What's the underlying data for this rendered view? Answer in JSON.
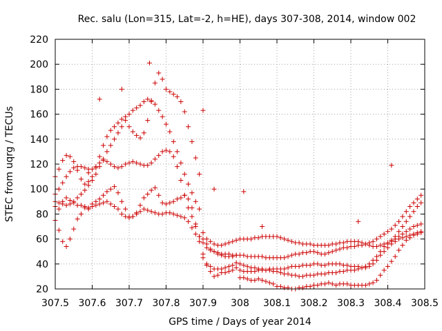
{
  "chart_data": {
    "type": "scatter",
    "title": "Rec. salu (Lon=315, Lat=-2, h=HE), days 307-308, 2014, window 002",
    "xlabel": "GPS time / Days of year 2014",
    "ylabel": "STEC from uqrg / TECUs",
    "xlim": [
      307.5,
      308.5
    ],
    "ylim": [
      20,
      220
    ],
    "xticks": [
      307.5,
      307.6,
      307.7,
      307.8,
      307.9,
      308.0,
      308.1,
      308.2,
      308.3,
      308.4,
      308.5
    ],
    "xtick_labels": [
      "307.5",
      "307.6",
      "307.7",
      "307.8",
      "307.9",
      "308",
      "308.1",
      "308.2",
      "308.3",
      "308.4",
      "308.5"
    ],
    "yticks": [
      20,
      40,
      60,
      80,
      100,
      120,
      140,
      160,
      180,
      200,
      220
    ],
    "ytick_labels": [
      "20",
      "40",
      "60",
      "80",
      "100",
      "120",
      "140",
      "160",
      "180",
      "200",
      "220"
    ],
    "grid": true,
    "marker": "plus",
    "color": "#cc0000",
    "series": [
      {
        "x": [
          307.5,
          307.51,
          307.52,
          307.53,
          307.54,
          307.55,
          307.56,
          307.57,
          307.58,
          307.59,
          307.6,
          307.61,
          307.62,
          307.63,
          307.64,
          307.65,
          307.66,
          307.67,
          307.68,
          307.69,
          307.7,
          307.71,
          307.72,
          307.73,
          307.74,
          307.75,
          307.76,
          307.77,
          307.78,
          307.79,
          307.8,
          307.81,
          307.82,
          307.83,
          307.84,
          307.85,
          307.86,
          307.87,
          307.88,
          307.89,
          307.9,
          307.91,
          307.92,
          307.93,
          307.94,
          307.95,
          307.96,
          307.97,
          307.98,
          307.99,
          308.0,
          308.01,
          308.02,
          308.03,
          308.04,
          308.05,
          308.06,
          308.07,
          308.08,
          308.09,
          308.1,
          308.11,
          308.12,
          308.13,
          308.14,
          308.15,
          308.16,
          308.17,
          308.18,
          308.19,
          308.2,
          308.21,
          308.22,
          308.23,
          308.24,
          308.25,
          308.26,
          308.27,
          308.28,
          308.29,
          308.3,
          308.31,
          308.32,
          308.33,
          308.34,
          308.35,
          308.36,
          308.37,
          308.38,
          308.39,
          308.4,
          308.41,
          308.42,
          308.43,
          308.44,
          308.45,
          308.46,
          308.47,
          308.48,
          308.49
        ],
        "y": [
          75,
          67,
          58,
          54,
          60,
          68,
          76,
          80,
          85,
          84,
          88,
          90,
          92,
          95,
          98,
          100,
          102,
          97,
          90,
          84,
          78,
          78,
          81,
          87,
          93,
          96,
          99,
          101,
          95,
          89,
          88,
          89,
          90,
          92,
          93,
          95,
          92,
          85,
          72,
          62,
          45,
          39,
          34,
          30,
          31,
          33,
          33,
          34,
          35,
          37,
          29,
          29,
          28,
          27,
          27,
          28,
          27,
          26,
          25,
          24,
          22,
          22,
          21,
          21,
          20,
          20,
          21,
          21,
          22,
          22,
          23,
          23,
          24,
          24,
          25,
          24,
          23,
          24,
          24,
          24,
          23,
          23,
          23,
          23,
          23,
          24,
          25,
          27,
          31,
          35,
          38,
          42,
          46,
          51,
          55,
          59,
          61,
          63,
          64,
          65
        ]
      },
      {
        "x": [
          307.5,
          307.51,
          307.52,
          307.53,
          307.54,
          307.55,
          307.56,
          307.57,
          307.58,
          307.59,
          307.6,
          307.61,
          307.62,
          307.63,
          307.64,
          307.65,
          307.66,
          307.67,
          307.68,
          307.69,
          307.7,
          307.71,
          307.72,
          307.73,
          307.74,
          307.75,
          307.76,
          307.77,
          307.78,
          307.79,
          307.8,
          307.81,
          307.82,
          307.83,
          307.84,
          307.85,
          307.86,
          307.87,
          307.88,
          307.89,
          307.9,
          307.91,
          307.92,
          307.93,
          307.94,
          307.95,
          307.96,
          307.97,
          307.98,
          307.99,
          308.0,
          308.01,
          308.02,
          308.03,
          308.04,
          308.05,
          308.06,
          308.07,
          308.08,
          308.09,
          308.1,
          308.11,
          308.12,
          308.13,
          308.14,
          308.15,
          308.16,
          308.17,
          308.18,
          308.19,
          308.2,
          308.21,
          308.22,
          308.23,
          308.24,
          308.25,
          308.26,
          308.27,
          308.28,
          308.29,
          308.3,
          308.31,
          308.32,
          308.33,
          308.34,
          308.35,
          308.36,
          308.37,
          308.38,
          308.39,
          308.4,
          308.41,
          308.42,
          308.43,
          308.44,
          308.45,
          308.46,
          308.47,
          308.48,
          308.49
        ],
        "y": [
          86,
          84,
          90,
          93,
          91,
          89,
          87,
          87,
          86,
          85,
          86,
          87,
          88,
          89,
          90,
          88,
          86,
          84,
          80,
          78,
          77,
          78,
          80,
          82,
          84,
          83,
          82,
          81,
          80,
          80,
          81,
          81,
          80,
          79,
          78,
          77,
          74,
          69,
          64,
          58,
          48,
          40,
          38,
          36,
          36,
          36,
          37,
          38,
          39,
          41,
          35,
          34,
          34,
          34,
          34,
          35,
          35,
          35,
          36,
          36,
          36,
          36,
          36,
          37,
          38,
          38,
          38,
          39,
          39,
          39,
          40,
          40,
          39,
          39,
          40,
          40,
          40,
          40,
          39,
          39,
          38,
          38,
          38,
          37,
          37,
          38,
          40,
          43,
          47,
          50,
          53,
          56,
          58,
          60,
          61,
          62,
          63,
          64,
          65,
          66
        ]
      },
      {
        "x": [
          307.5,
          307.51,
          307.52,
          307.53,
          307.54,
          307.55,
          307.56,
          307.57,
          307.58,
          307.59,
          307.6,
          307.61,
          307.62,
          307.63,
          307.64,
          307.65,
          307.66,
          307.67,
          307.68,
          307.69,
          307.7,
          307.71,
          307.72,
          307.73,
          307.74,
          307.75,
          307.76,
          307.77,
          307.78,
          307.79,
          307.8,
          307.81,
          307.82,
          307.83,
          307.84,
          307.85,
          307.86,
          307.87,
          307.88,
          307.89,
          307.9,
          307.91,
          307.92,
          307.93,
          307.94,
          307.95,
          307.96,
          307.97,
          307.98,
          307.99,
          308.0,
          308.01,
          308.02,
          308.03,
          308.04,
          308.05,
          308.06,
          308.07,
          308.08,
          308.09,
          308.1,
          308.11,
          308.12,
          308.13,
          308.14,
          308.15,
          308.16,
          308.17,
          308.18,
          308.19,
          308.2,
          308.21,
          308.22,
          308.23,
          308.24,
          308.25,
          308.26,
          308.27,
          308.28,
          308.29,
          308.3,
          308.31,
          308.32,
          308.33,
          308.34,
          308.35,
          308.36,
          308.37,
          308.38,
          308.39,
          308.4,
          308.41,
          308.42,
          308.43,
          308.44,
          308.45,
          308.46,
          308.47,
          308.48,
          308.49
        ],
        "y": [
          96,
          100,
          105,
          110,
          114,
          117,
          118,
          118,
          117,
          116,
          116,
          118,
          121,
          123,
          122,
          120,
          118,
          117,
          118,
          120,
          121,
          122,
          121,
          120,
          119,
          119,
          121,
          124,
          127,
          130,
          131,
          130,
          126,
          118,
          107,
          95,
          85,
          78,
          70,
          62,
          57,
          53,
          51,
          50,
          49,
          48,
          48,
          48,
          47,
          47,
          47,
          47,
          46,
          46,
          46,
          46,
          46,
          45,
          45,
          45,
          45,
          45,
          45,
          46,
          47,
          48,
          48,
          49,
          49,
          50,
          50,
          49,
          48,
          48,
          49,
          50,
          51,
          52,
          53,
          53,
          54,
          54,
          55,
          55,
          56,
          57,
          58,
          60,
          62,
          64,
          66,
          68,
          71,
          74,
          78,
          82,
          86,
          89,
          92,
          95
        ]
      },
      {
        "x": [
          307.5,
          307.51,
          307.52,
          307.53,
          307.54,
          307.55,
          307.56,
          307.57,
          307.58,
          307.59,
          307.6,
          307.61,
          307.62,
          307.63,
          307.64,
          307.65,
          307.66,
          307.67,
          307.68,
          307.69,
          307.7,
          307.71,
          307.72,
          307.73,
          307.74,
          307.75,
          307.76,
          307.77,
          307.78,
          307.79,
          307.8,
          307.81,
          307.82,
          307.83,
          307.84,
          307.85,
          307.86,
          307.87,
          307.88,
          307.89,
          307.9,
          307.91,
          307.92,
          307.93,
          307.94,
          307.95,
          307.96,
          307.97,
          307.98,
          307.99,
          308.0,
          308.01,
          308.02,
          308.03,
          308.04,
          308.05,
          308.06,
          308.07,
          308.08,
          308.09,
          308.1,
          308.11,
          308.12,
          308.13,
          308.14,
          308.15,
          308.16,
          308.17,
          308.18,
          308.19,
          308.2,
          308.21,
          308.22,
          308.23,
          308.24,
          308.25,
          308.26,
          308.27,
          308.28,
          308.29,
          308.3,
          308.31,
          308.32,
          308.33,
          308.34,
          308.35,
          308.36,
          308.37,
          308.38,
          308.39,
          308.4,
          308.41,
          308.42,
          308.43,
          308.44,
          308.45,
          308.46,
          308.47,
          308.48,
          308.49
        ],
        "y": [
          110,
          116,
          123,
          127,
          126,
          122,
          115,
          108,
          104,
          106,
          110,
          117,
          126,
          135,
          142,
          147,
          150,
          153,
          156,
          158,
          160,
          163,
          165,
          167,
          170,
          172,
          171,
          168,
          163,
          158,
          152,
          146,
          138,
          130,
          121,
          112,
          104,
          97,
          90,
          84,
          60,
          56,
          52,
          50,
          48,
          47,
          46,
          46,
          46,
          47,
          40,
          39,
          38,
          37,
          37,
          36,
          36,
          35,
          35,
          34,
          34,
          33,
          32,
          32,
          31,
          31,
          30,
          30,
          31,
          31,
          31,
          32,
          32,
          32,
          33,
          33,
          33,
          34,
          34,
          35,
          35,
          35,
          36,
          37,
          38,
          40,
          43,
          46,
          50,
          54,
          56,
          59,
          62,
          66,
          70,
          74,
          78,
          82,
          86,
          89
        ]
      },
      {
        "x": [
          307.5,
          307.51,
          307.52,
          307.53,
          307.54,
          307.55,
          307.56,
          307.57,
          307.58,
          307.59,
          307.6,
          307.61,
          307.62,
          307.63,
          307.64,
          307.65,
          307.66,
          307.67,
          307.68,
          307.69,
          307.7,
          307.71,
          307.72,
          307.73,
          307.74,
          307.75,
          307.76,
          307.77,
          307.78,
          307.79,
          307.8,
          307.81,
          307.82,
          307.83,
          307.84,
          307.85,
          307.86,
          307.87,
          307.88,
          307.89,
          307.9,
          307.91,
          307.92,
          307.93,
          307.94,
          307.95,
          307.96,
          307.97,
          307.98,
          307.99,
          308.0,
          308.01,
          308.02,
          308.03,
          308.04,
          308.05,
          308.06,
          308.07,
          308.08,
          308.09,
          308.1,
          308.11,
          308.12,
          308.13,
          308.14,
          308.15,
          308.16,
          308.17,
          308.18,
          308.19,
          308.2,
          308.21,
          308.22,
          308.23,
          308.24,
          308.25,
          308.26,
          308.27,
          308.28,
          308.29,
          308.3,
          308.31,
          308.32,
          308.33,
          308.34,
          308.35,
          308.36,
          308.37,
          308.38,
          308.39,
          308.4,
          308.41,
          308.42,
          308.43,
          308.44,
          308.45,
          308.46,
          308.47,
          308.48,
          308.49
        ],
        "y": [
          90,
          89,
          88,
          87,
          88,
          90,
          93,
          96,
          99,
          103,
          107,
          112,
          118,
          124,
          130,
          135,
          140,
          145,
          150,
          155,
          150,
          146,
          143,
          141,
          145,
          155,
          170,
          185,
          193,
          188,
          180,
          178,
          176,
          174,
          170,
          162,
          150,
          138,
          125,
          112,
          65,
          60,
          58,
          56,
          55,
          55,
          56,
          57,
          58,
          59,
          60,
          60,
          60,
          60,
          61,
          61,
          62,
          62,
          62,
          62,
          62,
          61,
          60,
          59,
          58,
          57,
          57,
          56,
          56,
          56,
          55,
          55,
          55,
          55,
          55,
          56,
          56,
          57,
          57,
          58,
          58,
          58,
          58,
          57,
          56,
          55,
          54,
          54,
          55,
          56,
          57,
          58,
          60,
          62,
          64,
          66,
          68,
          70,
          71,
          72
        ]
      }
    ],
    "outliers": {
      "x": [
        307.59,
        307.62,
        307.68,
        307.755,
        307.9,
        307.93,
        308.01,
        308.06,
        308.32,
        308.41
      ],
      "y": [
        113,
        172,
        180,
        201,
        163,
        100,
        98,
        70,
        74,
        119
      ]
    }
  }
}
